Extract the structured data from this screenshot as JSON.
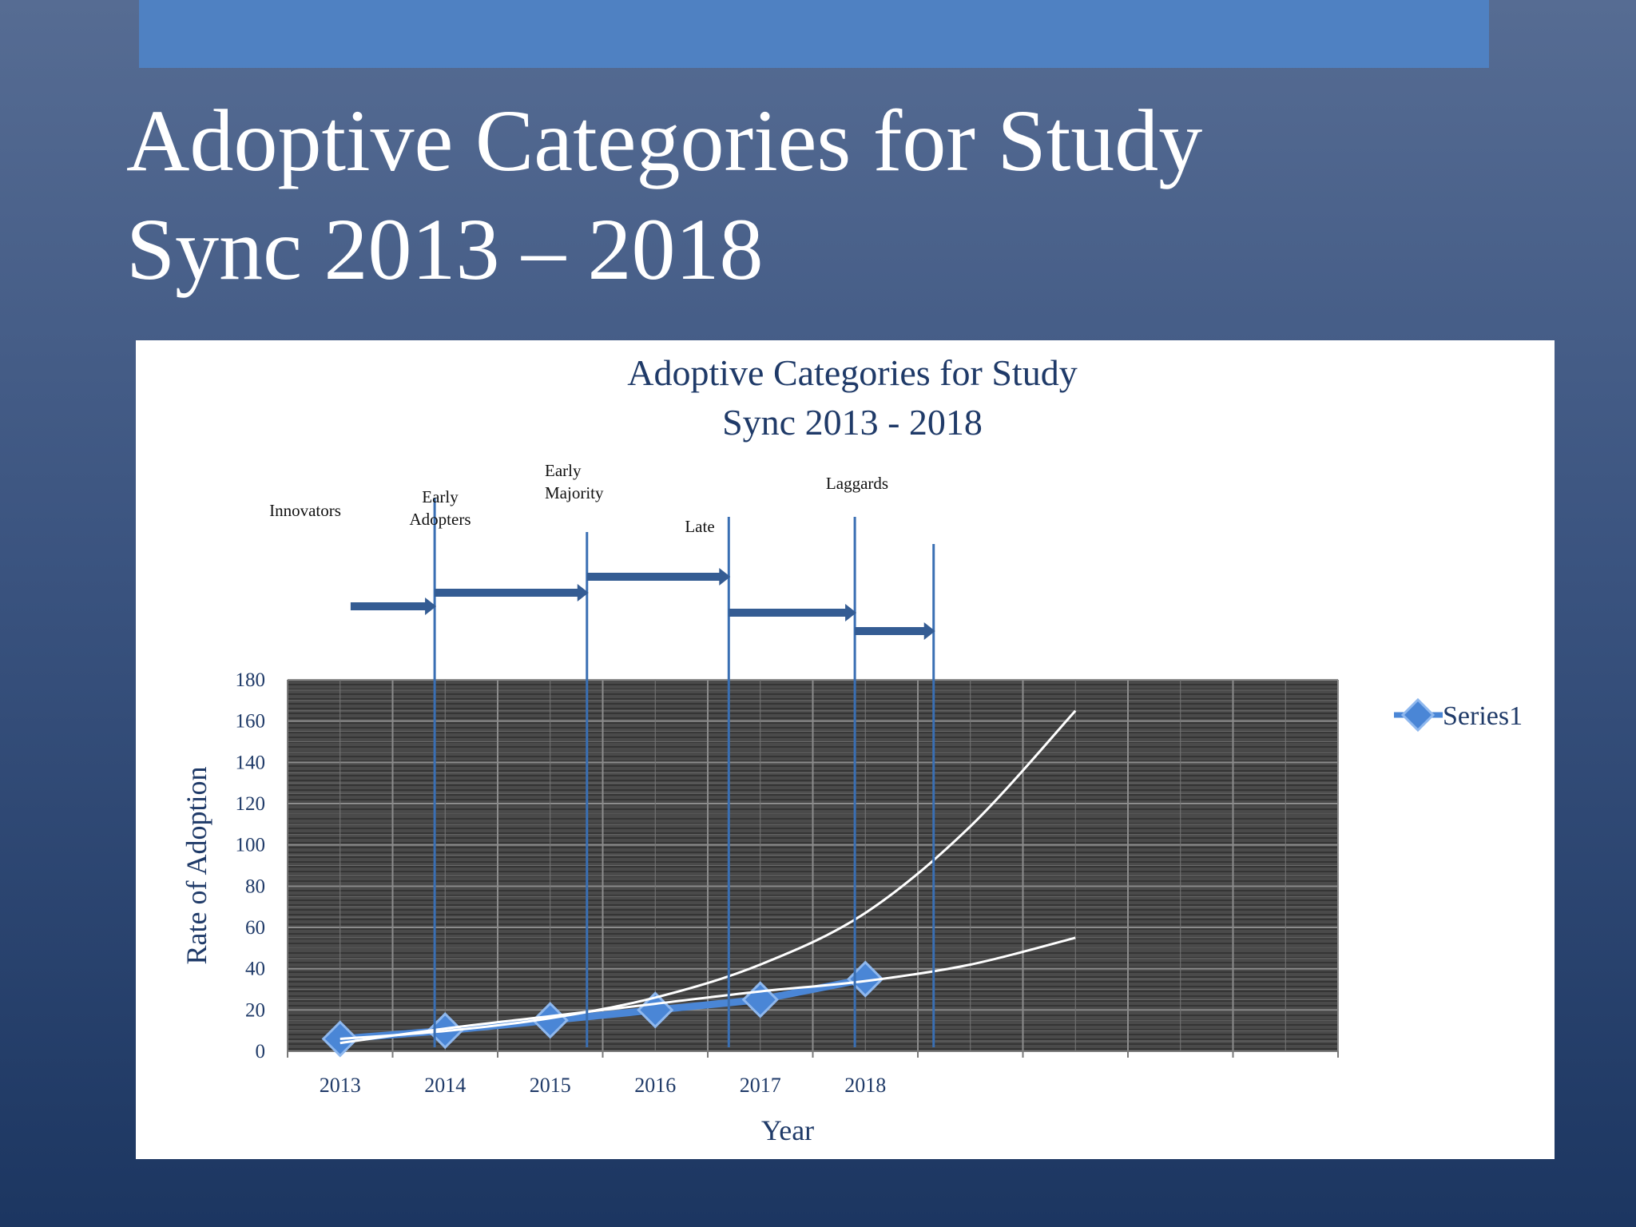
{
  "slide": {
    "title_line1": "Adoptive Categories for Study",
    "title_line2": "Sync 2013 – 2018",
    "top_bar_color": "#4f81c2"
  },
  "chart_data": {
    "type": "line",
    "title_line1": "Adoptive Categories for Study",
    "title_line2": "Sync 2013 - 2018",
    "xlabel": "Year",
    "ylabel": "Rate of Adoption",
    "categories": [
      "2013",
      "2014",
      "2015",
      "2016",
      "2017",
      "2018"
    ],
    "series": [
      {
        "name": "Series1",
        "values": [
          6,
          10,
          15,
          20,
          25,
          35
        ],
        "color": "#4a86d6",
        "marker": "diamond"
      }
    ],
    "trendlines": [
      {
        "kind": "exponential",
        "color": "#ffffff",
        "values": [
          6,
          9.8,
          16,
          26,
          42,
          67,
          109,
          165
        ]
      },
      {
        "kind": "linear",
        "color": "#ffffff",
        "values": [
          4,
          11,
          17,
          23,
          29,
          34,
          42,
          55
        ]
      }
    ],
    "ylim": [
      0,
      180
    ],
    "yticks": [
      0,
      20,
      40,
      60,
      80,
      100,
      120,
      140,
      160,
      180
    ],
    "x_slots": 10,
    "grid": true,
    "plot_background": "#4a4a4a",
    "legend": {
      "position": "right",
      "label": "Series1"
    },
    "adoption_categories": [
      {
        "label_lines": [
          "Innovators"
        ],
        "start": 0.6,
        "end": 1.4
      },
      {
        "label_lines": [
          "Early",
          "Adopters"
        ],
        "start": 1.4,
        "end": 2.85
      },
      {
        "label_lines": [
          "Early",
          "Majority"
        ],
        "start": 2.85,
        "end": 4.2
      },
      {
        "label_lines": [
          "Late"
        ],
        "start": 4.2,
        "end": 5.4
      },
      {
        "label_lines": [
          "Laggards"
        ],
        "start": 5.4,
        "end": 6.15
      }
    ],
    "boundary_color": "#3a6fb3",
    "arrow_color": "#345c93"
  }
}
